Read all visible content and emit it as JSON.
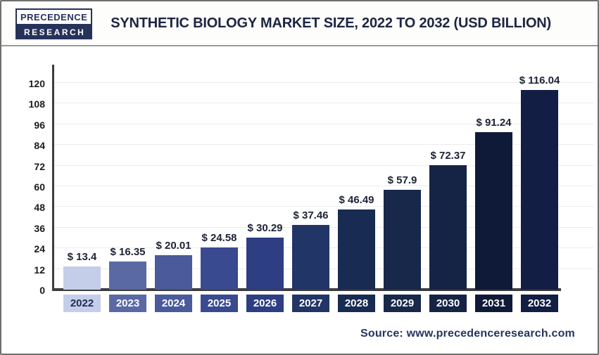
{
  "header": {
    "logo_line1": "PRECEDENCE",
    "logo_line2": "RESEARCH",
    "title": "SYNTHETIC BIOLOGY MARKET SIZE, 2022 TO 2032 (USD BILLION)"
  },
  "footer": {
    "source": "Source: www.precedenceresearch.com"
  },
  "chart_data": {
    "type": "bar",
    "title": "Synthetic Biology Market Size, 2022 to 2032 (USD Billion)",
    "categories": [
      "2022",
      "2023",
      "2024",
      "2025",
      "2026",
      "2027",
      "2028",
      "2029",
      "2030",
      "2031",
      "2032"
    ],
    "values": [
      13.4,
      16.35,
      20.01,
      24.58,
      30.29,
      37.46,
      46.49,
      57.9,
      72.37,
      91.24,
      116.04
    ],
    "value_labels": [
      "$ 13.4",
      "$ 16.35",
      "$ 20.01",
      "$ 24.58",
      "$ 30.29",
      "$ 37.46",
      "$ 46.49",
      "$ 57.9",
      "$ 72.37",
      "$ 91.24",
      "$ 116.04"
    ],
    "bar_colors": [
      "#c5cee9",
      "#5a69a3",
      "#4a5a9b",
      "#3a4a90",
      "#2d3e83",
      "#213566",
      "#182b52",
      "#17284b",
      "#152345",
      "#0f1a38",
      "#131e45"
    ],
    "badge_text_colors": [
      "#1e2a52",
      "#ffffff",
      "#ffffff",
      "#ffffff",
      "#ffffff",
      "#ffffff",
      "#ffffff",
      "#ffffff",
      "#ffffff",
      "#ffffff",
      "#ffffff"
    ],
    "yticks": [
      0,
      12,
      24,
      36,
      48,
      60,
      72,
      84,
      96,
      108,
      120
    ],
    "ylim": [
      0,
      120
    ],
    "xlabel": "",
    "ylabel": "",
    "grid": true,
    "legend": "none"
  }
}
